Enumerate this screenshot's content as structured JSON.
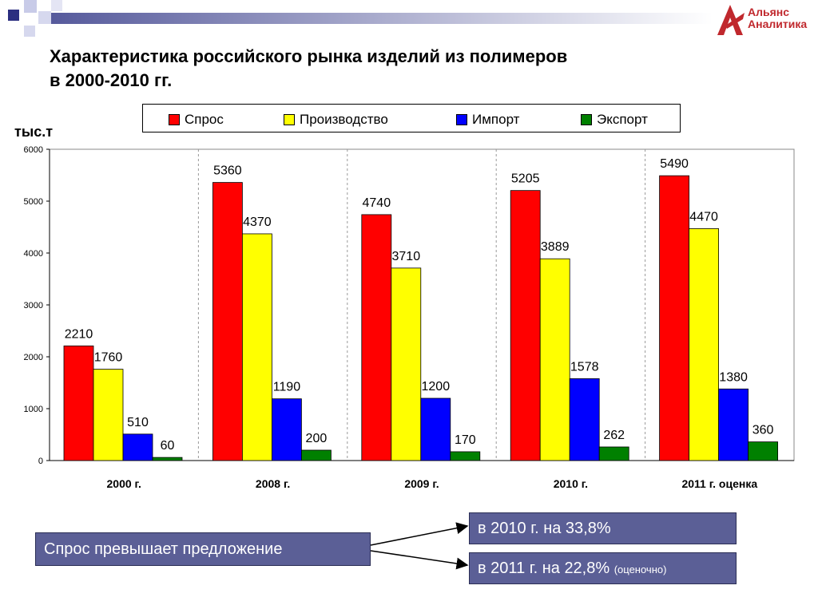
{
  "title_line1": "Характеристика российского рынка изделий из полимеров",
  "title_line2": "в 2000-2010 гг.",
  "logo": {
    "line1": "Альянс",
    "line2": "Аналитика",
    "color": "#c0282d"
  },
  "unit_label": "тыс.т",
  "legend": [
    {
      "label": "Спрос",
      "color": "#ff0000"
    },
    {
      "label": "Производство",
      "color": "#ffff00"
    },
    {
      "label": "Импорт",
      "color": "#0000ff"
    },
    {
      "label": "Экспорт",
      "color": "#008000"
    }
  ],
  "chart_data": {
    "type": "bar",
    "categories": [
      "2000 г.",
      "2008 г.",
      "2009 г.",
      "2010 г.",
      "2011 г. оценка"
    ],
    "series": [
      {
        "name": "Спрос",
        "color": "#ff0000",
        "values": [
          2210,
          5360,
          4740,
          5205,
          5490
        ]
      },
      {
        "name": "Производство",
        "color": "#ffff00",
        "values": [
          1760,
          4370,
          3710,
          3889,
          4470
        ]
      },
      {
        "name": "Импорт",
        "color": "#0000ff",
        "values": [
          510,
          1190,
          1200,
          1578,
          1380
        ]
      },
      {
        "name": "Экспорт",
        "color": "#008000",
        "values": [
          60,
          200,
          170,
          262,
          360
        ]
      }
    ],
    "ylabel": "тыс.т",
    "ylim": [
      0,
      6000
    ],
    "yticks": [
      0,
      1000,
      2000,
      3000,
      4000,
      5000,
      6000
    ],
    "grid": "vertical dashed category separators",
    "legend_position": "top"
  },
  "callouts": {
    "main": "Спрос превышает предложение",
    "first": "в 2010 г. на 33,8%",
    "second": "в 2011 г. на 22,8%",
    "second_note": "(оценочно)"
  }
}
